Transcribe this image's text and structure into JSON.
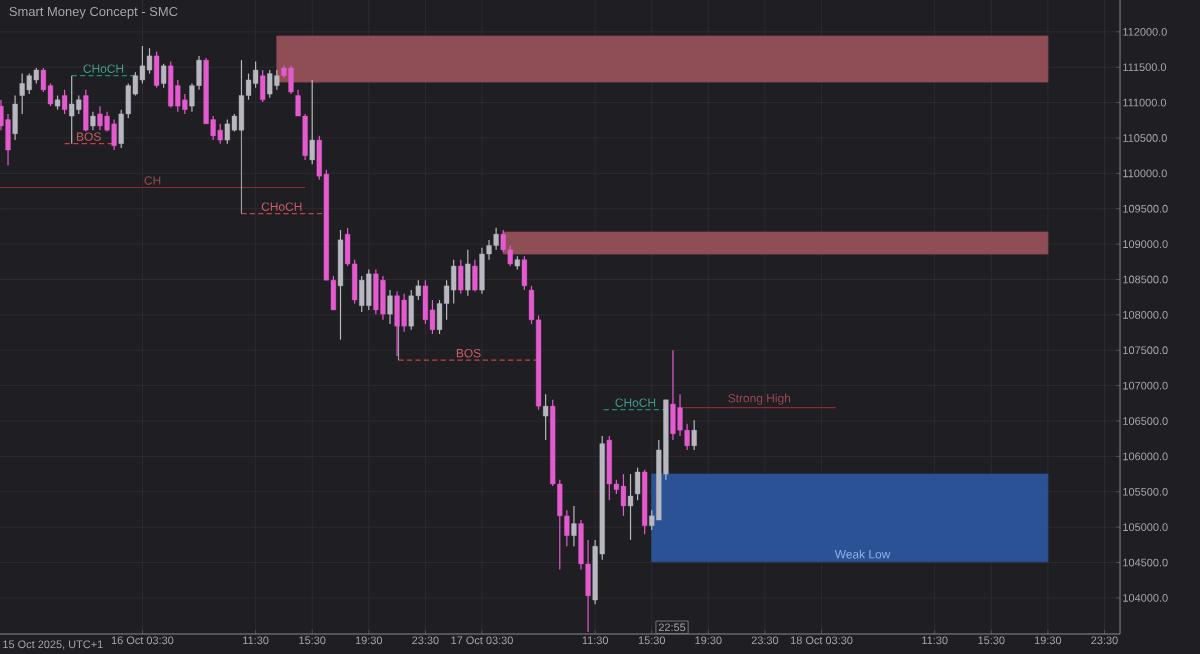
{
  "chart_data": {
    "type": "candlestick",
    "title": "Smart Money Concept - SMC",
    "x": [
      "2025-10-15T17:30",
      "2025-10-15T18:00",
      "2025-10-15T18:30",
      "2025-10-15T19:00",
      "2025-10-15T19:30",
      "2025-10-15T20:00",
      "2025-10-15T20:30",
      "2025-10-15T21:00",
      "2025-10-15T21:30",
      "2025-10-15T22:00",
      "2025-10-15T22:30",
      "2025-10-15T23:00",
      "2025-10-15T23:30",
      "2025-10-16T00:00",
      "2025-10-16T00:30",
      "2025-10-16T01:00",
      "2025-10-16T01:30",
      "2025-10-16T02:00",
      "2025-10-16T02:30",
      "2025-10-16T03:00",
      "2025-10-16T03:30",
      "2025-10-16T04:00",
      "2025-10-16T04:30",
      "2025-10-16T05:00",
      "2025-10-16T05:30",
      "2025-10-16T06:00",
      "2025-10-16T06:30",
      "2025-10-16T07:00",
      "2025-10-16T07:30",
      "2025-10-16T08:00",
      "2025-10-16T08:30",
      "2025-10-16T09:00",
      "2025-10-16T09:30",
      "2025-10-16T10:00",
      "2025-10-16T10:30",
      "2025-10-16T11:00",
      "2025-10-16T11:30",
      "2025-10-16T12:00",
      "2025-10-16T12:30",
      "2025-10-16T13:00",
      "2025-10-16T13:30",
      "2025-10-16T14:00",
      "2025-10-16T14:30",
      "2025-10-16T15:00",
      "2025-10-16T15:30",
      "2025-10-16T16:00",
      "2025-10-16T16:30",
      "2025-10-16T17:00",
      "2025-10-16T17:30",
      "2025-10-16T18:00",
      "2025-10-16T18:30",
      "2025-10-16T19:00",
      "2025-10-16T19:30",
      "2025-10-16T20:00",
      "2025-10-16T20:30",
      "2025-10-16T21:00",
      "2025-10-16T21:30",
      "2025-10-16T22:00",
      "2025-10-16T22:30",
      "2025-10-16T23:00",
      "2025-10-16T23:30",
      "2025-10-17T00:00",
      "2025-10-17T00:30",
      "2025-10-17T01:00",
      "2025-10-17T01:30",
      "2025-10-17T02:00",
      "2025-10-17T02:30",
      "2025-10-17T03:00",
      "2025-10-17T03:30",
      "2025-10-17T04:00",
      "2025-10-17T04:30",
      "2025-10-17T05:00",
      "2025-10-17T05:30",
      "2025-10-17T06:00",
      "2025-10-17T06:30",
      "2025-10-17T07:00",
      "2025-10-17T07:30",
      "2025-10-17T08:00",
      "2025-10-17T08:30",
      "2025-10-17T09:00",
      "2025-10-17T09:30",
      "2025-10-17T10:00",
      "2025-10-17T10:30",
      "2025-10-17T11:00",
      "2025-10-17T11:30",
      "2025-10-17T12:00",
      "2025-10-17T12:30",
      "2025-10-17T13:00",
      "2025-10-17T13:30",
      "2025-10-17T14:00",
      "2025-10-17T14:30",
      "2025-10-17T15:00",
      "2025-10-17T15:30",
      "2025-10-17T16:00",
      "2025-10-17T16:30",
      "2025-10-17T17:00",
      "2025-10-17T17:30",
      "2025-10-17T18:00",
      "2025-10-17T18:30"
    ],
    "ohlc": [
      [
        110950,
        111040,
        110610,
        110670
      ],
      [
        110760,
        110840,
        110110,
        110330
      ],
      [
        110560,
        111100,
        110470,
        110980
      ],
      [
        111100,
        111410,
        110840,
        111270
      ],
      [
        111180,
        111410,
        111120,
        111380
      ],
      [
        111320,
        111490,
        111270,
        111460
      ],
      [
        111460,
        111490,
        111150,
        111180
      ],
      [
        111240,
        111270,
        110950,
        110980
      ],
      [
        110950,
        111100,
        110900,
        111040
      ],
      [
        111100,
        111180,
        110840,
        110900
      ],
      [
        110810,
        111380,
        110420,
        110980
      ],
      [
        110900,
        111100,
        110840,
        111040
      ],
      [
        111100,
        111180,
        110590,
        110610
      ],
      [
        110670,
        110870,
        110610,
        110810
      ],
      [
        110840,
        110950,
        110610,
        110670
      ],
      [
        110810,
        110870,
        110590,
        110610
      ],
      [
        110700,
        110760,
        110330,
        110390
      ],
      [
        110420,
        110900,
        110360,
        110840
      ],
      [
        110840,
        111270,
        110780,
        111240
      ],
      [
        111120,
        111430,
        111100,
        111380
      ],
      [
        111320,
        111800,
        111270,
        111520
      ],
      [
        111460,
        111770,
        111410,
        111660
      ],
      [
        111660,
        111720,
        111210,
        111240
      ],
      [
        111270,
        111550,
        111210,
        111520
      ],
      [
        111520,
        111580,
        110930,
        110950
      ],
      [
        111240,
        111320,
        110870,
        110950
      ],
      [
        111040,
        111120,
        110840,
        110900
      ],
      [
        110950,
        111270,
        110870,
        111240
      ],
      [
        111240,
        111660,
        111180,
        111600
      ],
      [
        111600,
        111630,
        110700,
        110700
      ],
      [
        110760,
        110810,
        110470,
        110530
      ],
      [
        110610,
        110700,
        110420,
        110470
      ],
      [
        110470,
        110760,
        110420,
        110700
      ],
      [
        110610,
        110840,
        110590,
        110810
      ],
      [
        110610,
        111600,
        110590,
        111100
      ],
      [
        111100,
        111410,
        111040,
        111320
      ],
      [
        111270,
        111580,
        111210,
        111460
      ],
      [
        111380,
        111460,
        111010,
        111040
      ],
      [
        111120,
        111460,
        111070,
        111410
      ],
      [
        111240,
        111460,
        111180,
        111380
      ],
      [
        111490,
        111520,
        111350,
        111380
      ],
      [
        111490,
        111520,
        111120,
        111150
      ],
      [
        111100,
        111180,
        110810,
        110810
      ],
      [
        110810,
        110840,
        110190,
        110250
      ],
      [
        110190,
        111320,
        110130,
        110470
      ],
      [
        110470,
        110530,
        109910,
        109960
      ],
      [
        109990,
        110050,
        108490,
        108490
      ],
      [
        108490,
        108550,
        108070,
        108070
      ],
      [
        108410,
        109200,
        107650,
        109060
      ],
      [
        109140,
        109230,
        108690,
        108720
      ],
      [
        108720,
        108780,
        108160,
        108210
      ],
      [
        108130,
        108550,
        108040,
        108490
      ],
      [
        108130,
        108640,
        108070,
        108580
      ],
      [
        108580,
        108640,
        108010,
        108070
      ],
      [
        108490,
        108550,
        107930,
        108010
      ],
      [
        108010,
        108350,
        107870,
        108270
      ],
      [
        108270,
        108330,
        107420,
        107840
      ],
      [
        108210,
        108300,
        107760,
        107840
      ],
      [
        107840,
        108350,
        107790,
        108270
      ],
      [
        108270,
        108490,
        108210,
        108410
      ],
      [
        108410,
        108490,
        107870,
        107930
      ],
      [
        108070,
        108210,
        107730,
        107790
      ],
      [
        107790,
        108210,
        107730,
        108160
      ],
      [
        108160,
        108490,
        107930,
        108410
      ],
      [
        108350,
        108780,
        108160,
        108690
      ],
      [
        108690,
        108780,
        108300,
        108350
      ],
      [
        108350,
        108920,
        108270,
        108720
      ],
      [
        108690,
        108780,
        108330,
        108350
      ],
      [
        108350,
        108950,
        108300,
        108860
      ],
      [
        108860,
        109060,
        108780,
        108980
      ],
      [
        108980,
        109230,
        108920,
        109140
      ],
      [
        109140,
        109200,
        108890,
        108920
      ],
      [
        108920,
        108980,
        108690,
        108720
      ],
      [
        108690,
        108830,
        108640,
        108780
      ],
      [
        108780,
        108830,
        108350,
        108410
      ],
      [
        108350,
        108410,
        107870,
        107930
      ],
      [
        107930,
        107990,
        106660,
        106710
      ],
      [
        106570,
        106880,
        106230,
        106710
      ],
      [
        106710,
        106800,
        105580,
        105610
      ],
      [
        105610,
        105670,
        104400,
        105160
      ],
      [
        105160,
        105240,
        104730,
        104880
      ],
      [
        104880,
        105300,
        104730,
        105050
      ],
      [
        105050,
        105100,
        104400,
        104480
      ],
      [
        104480,
        104820,
        103520,
        104030
      ],
      [
        103970,
        104820,
        103910,
        104730
      ],
      [
        104620,
        106290,
        104540,
        106180
      ],
      [
        106230,
        106290,
        105380,
        105610
      ],
      [
        105610,
        105670,
        105470,
        105530
      ],
      [
        105580,
        105750,
        105160,
        105300
      ],
      [
        105300,
        105750,
        104820,
        105440
      ],
      [
        105470,
        105840,
        105380,
        105780
      ],
      [
        105780,
        105810,
        104900,
        105020
      ],
      [
        105020,
        105240,
        104960,
        105160
      ],
      [
        105100,
        106230,
        105100,
        106090
      ],
      [
        105750,
        106800,
        105670,
        106800
      ],
      [
        106740,
        107500,
        106230,
        106320
      ],
      [
        106690,
        106880,
        106290,
        106370
      ],
      [
        106370,
        106460,
        106090,
        106150
      ],
      [
        106150,
        106510,
        106090,
        106370
      ]
    ],
    "colors": [
      "#e45bcf",
      "#e45bcf",
      "#b8b8c0",
      "#b8b8c0",
      "#b8b8c0",
      "#b8b8c0",
      "#e45bcf",
      "#e45bcf",
      "#b8b8c0",
      "#e45bcf",
      "#b8b8c0",
      "#b8b8c0",
      "#e45bcf",
      "#b8b8c0",
      "#e45bcf",
      "#e45bcf",
      "#e45bcf",
      "#b8b8c0",
      "#b8b8c0",
      "#b8b8c0",
      "#b8b8c0",
      "#b8b8c0",
      "#e45bcf",
      "#b8b8c0",
      "#e45bcf",
      "#e45bcf",
      "#e45bcf",
      "#b8b8c0",
      "#b8b8c0",
      "#e45bcf",
      "#e45bcf",
      "#e45bcf",
      "#b8b8c0",
      "#b8b8c0",
      "#b8b8c0",
      "#b8b8c0",
      "#b8b8c0",
      "#e45bcf",
      "#b8b8c0",
      "#b8b8c0",
      "#e45bcf",
      "#e45bcf",
      "#e45bcf",
      "#e45bcf",
      "#b8b8c0",
      "#e45bcf",
      "#e45bcf",
      "#e45bcf",
      "#b8b8c0",
      "#e45bcf",
      "#e45bcf",
      "#b8b8c0",
      "#b8b8c0",
      "#e45bcf",
      "#e45bcf",
      "#b8b8c0",
      "#e45bcf",
      "#e45bcf",
      "#b8b8c0",
      "#b8b8c0",
      "#e45bcf",
      "#e45bcf",
      "#b8b8c0",
      "#b8b8c0",
      "#b8b8c0",
      "#e45bcf",
      "#b8b8c0",
      "#e45bcf",
      "#b8b8c0",
      "#b8b8c0",
      "#b8b8c0",
      "#e45bcf",
      "#e45bcf",
      "#b8b8c0",
      "#e45bcf",
      "#e45bcf",
      "#e45bcf",
      "#b8b8c0",
      "#e45bcf",
      "#e45bcf",
      "#e45bcf",
      "#b8b8c0",
      "#e45bcf",
      "#e45bcf",
      "#b8b8c0",
      "#b8b8c0",
      "#e45bcf",
      "#e45bcf",
      "#e45bcf",
      "#b8b8c0",
      "#b8b8c0",
      "#e45bcf",
      "#b8b8c0",
      "#b8b8c0",
      "#b8b8c0",
      "#e45bcf",
      "#e45bcf",
      "#e45bcf",
      "#b8b8c0"
    ],
    "series": [
      {
        "type": "line",
        "x": [
          "2025-10-16T13:00",
          "2025-10-18T19:30"
        ],
        "values": [
          null,
          null
        ],
        "lower": [
          111290,
          111290
        ],
        "upper": [
          111940,
          111940
        ],
        "color": "#8f4d55"
      },
      {
        "type": "line",
        "x": [
          "2025-10-17T05:00",
          "2025-10-18T19:30"
        ],
        "values": [
          null,
          null
        ],
        "lower": [
          108860,
          108860
        ],
        "upper": [
          109170,
          109170
        ],
        "color": "#8f4d55"
      },
      {
        "type": "line",
        "x": [
          "2025-10-17T15:30",
          "2025-10-18T19:30"
        ],
        "values": [
          null,
          null
        ],
        "lower": [
          104510,
          104510
        ],
        "upper": [
          105750,
          105750
        ],
        "color": "#2b5295"
      },
      {
        "type": "line",
        "name": "CHoCH",
        "x": [
          "2025-10-15T22:30",
          "2025-10-16T03:00"
        ],
        "values": [
          111380,
          111380
        ],
        "color": "#1e8c78",
        "line_style": "dashed"
      },
      {
        "type": "line",
        "name": "BOS",
        "x": [
          "2025-10-15T22:00",
          "2025-10-16T01:24"
        ],
        "values": [
          110420,
          110420
        ],
        "color": "#c2424a",
        "line_style": "dashed"
      },
      {
        "type": "line",
        "name": "CH",
        "x": [
          "2025-10-15T17:26",
          "2025-10-16T15:00"
        ],
        "values": [
          109800,
          109800
        ],
        "color": "#8a2a33",
        "line_style": "solid"
      },
      {
        "type": "line",
        "name": "CHoCH",
        "x": [
          "2025-10-16T10:30",
          "2025-10-16T16:12"
        ],
        "values": [
          109430,
          109430
        ],
        "color": "#c2424a",
        "line_style": "dashed"
      },
      {
        "type": "line",
        "x": [
          "2025-10-16T10:30",
          "2025-10-16T10:30"
        ],
        "values": [
          110610,
          109430
        ],
        "color": "#9a9aa0",
        "line_style": "solid"
      },
      {
        "type": "line",
        "name": "BOS",
        "x": [
          "2025-10-16T21:36",
          "2025-10-17T07:30"
        ],
        "values": [
          107360,
          107360
        ],
        "color": "#c2424a",
        "line_style": "dashed"
      },
      {
        "type": "line",
        "x": [
          "2025-10-16T21:36",
          "2025-10-16T21:36"
        ],
        "values": [
          107930,
          107360
        ],
        "color": "#9a9aa0",
        "line_style": "solid"
      },
      {
        "type": "line",
        "name": "CHoCH",
        "x": [
          "2025-10-17T12:06",
          "2025-10-17T16:36"
        ],
        "values": [
          106660,
          106660
        ],
        "color": "#1e8c78",
        "line_style": "dashed"
      },
      {
        "type": "line",
        "name": "Strong High",
        "x": [
          "2025-10-17T17:42",
          "2025-10-18T04:30"
        ],
        "values": [
          106690,
          106690
        ],
        "color": "#8a2a33",
        "line_style": "solid"
      }
    ],
    "annotations": [
      "15 Oct 2025, UTC+1",
      "22:55",
      {
        "text": "Weak Low",
        "x": "2025-10-18T06:24",
        "y": 104620
      }
    ],
    "xlim": [
      "2025-10-15T17:26",
      "2025-10-19T00:36"
    ],
    "ylim": [
      103490,
      112450
    ],
    "xticks": [
      {
        "value": "2025-10-16T03:30",
        "label": "16 Oct 03:30"
      },
      {
        "value": "2025-10-16T11:30",
        "label": "11:30"
      },
      {
        "value": "2025-10-16T15:30",
        "label": "15:30"
      },
      {
        "value": "2025-10-16T19:30",
        "label": "19:30"
      },
      {
        "value": "2025-10-16T23:30",
        "label": "23:30"
      },
      {
        "value": "2025-10-17T03:30",
        "label": "17 Oct 03:30"
      },
      {
        "value": "2025-10-17T11:30",
        "label": "11:30"
      },
      {
        "value": "2025-10-17T15:30",
        "label": "15:30"
      },
      {
        "value": "2025-10-17T19:30",
        "label": "19:30"
      },
      {
        "value": "2025-10-17T23:30",
        "label": "23:30"
      },
      {
        "value": "2025-10-18T03:30",
        "label": "18 Oct 03:30"
      },
      {
        "value": "2025-10-18T11:30",
        "label": "11:30"
      },
      {
        "value": "2025-10-18T15:30",
        "label": "15:30"
      },
      {
        "value": "2025-10-18T19:30",
        "label": "19:30"
      },
      {
        "value": "2025-10-18T23:30",
        "label": "23:30"
      }
    ],
    "yticks": [
      {
        "value": 104000,
        "label": "104000.0"
      },
      {
        "value": 104500,
        "label": "104500.0"
      },
      {
        "value": 105000,
        "label": "105000.0"
      },
      {
        "value": 105500,
        "label": "105500.0"
      },
      {
        "value": 106000,
        "label": "106000.0"
      },
      {
        "value": 106500,
        "label": "106500.0"
      },
      {
        "value": 107000,
        "label": "107000.0"
      },
      {
        "value": 107500,
        "label": "107500.0"
      },
      {
        "value": 108000,
        "label": "108000.0"
      },
      {
        "value": 108500,
        "label": "108500.0"
      },
      {
        "value": 109000,
        "label": "109000.0"
      },
      {
        "value": 109500,
        "label": "109500.0"
      },
      {
        "value": 110000,
        "label": "110000.0"
      },
      {
        "value": 110500,
        "label": "110500.0"
      },
      {
        "value": 111000,
        "label": "111000.0"
      },
      {
        "value": 111500,
        "label": "111500.0"
      },
      {
        "value": 112000,
        "label": "112000.0"
      }
    ],
    "grid": true
  }
}
